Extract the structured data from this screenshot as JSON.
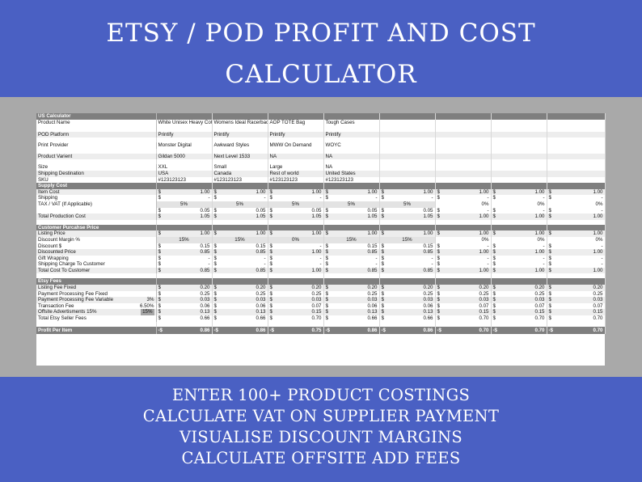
{
  "header": {
    "line1": "ETSY  / POD PROFIT AND COST",
    "line2": "CALCULATOR"
  },
  "sheet": {
    "title": "US Calculator",
    "products": [
      {
        "name": "White Unisex Heavy Cotton Tee",
        "platform": "Printify",
        "provider": "Monster Digital",
        "variant": "Gildan 5000",
        "size": "XXL",
        "destination": "USA",
        "sku": "#123123123"
      },
      {
        "name": "Womens Ideal Racerback Tank",
        "platform": "Printify",
        "provider": "Awkward Styles",
        "variant": "Next Level 1533",
        "size": "Small",
        "destination": "Canada",
        "sku": "#123123123"
      },
      {
        "name": "AOP TOTE Bag",
        "platform": "Printify",
        "provider": "MWW On Demand",
        "variant": "NA",
        "size": "Large",
        "destination": "Rest of world",
        "sku": "#123123123"
      },
      {
        "name": "Tough Cases",
        "platform": "Printify",
        "provider": "WOYC",
        "variant": "NA",
        "size": "NA",
        "destination": "United States",
        "sku": "#123123123"
      }
    ],
    "labels": {
      "product_name": "Product Name",
      "platform": "POD Platform",
      "provider": "Print Provider",
      "variant": "Product Varient",
      "size": "Size",
      "destination": "Shipping Destination",
      "sku": "SKU",
      "supply_cost": "Supply Cost",
      "item_cost": "Item Cost",
      "shipping": "Shipping",
      "tax": "TAX / VAT (If Applicable)",
      "total_production": "Total Production Cost",
      "customer_price": "Customer Purcahse Price",
      "listing_price": "Listing Price",
      "discount_margin": "Discount Margin %",
      "discount_amt": "Discount $",
      "discounted_price": "Discounted Price",
      "gift_wrapping": "Gift Wrapping",
      "shipping_charge": "Shipping Charge To Customer",
      "total_cost_customer": "Total Cost To Customer",
      "etsy_fees": "Etsy Fees",
      "listing_fee": "Listing Fee Fixed",
      "ppf_fixed": "Payment Processing Fee Fixed",
      "ppf_variable": "Payment Processing Fee Variable",
      "transaction_fee": "Transaction Fee",
      "offsite_ads": "Offsite Advertisments 15%",
      "total_etsy": "Total Etsy Seller Fees",
      "profit": "Profit Per Item"
    },
    "rates": {
      "ppf_variable": "3%",
      "transaction_fee": "6.50%",
      "offsite_ads": "15%"
    },
    "columns": {
      "item_cost": [
        "1.00",
        "1.00",
        "1.00",
        "1.00",
        "1.00",
        "1.00",
        "1.00",
        "1.00"
      ],
      "shipping": [
        "-",
        "-",
        "-",
        "-",
        "-",
        "-",
        "-",
        "-"
      ],
      "tax_pct": [
        "5%",
        "5%",
        "5%",
        "5%",
        "5%",
        "0%",
        "0%",
        "0%"
      ],
      "tax_amt": [
        "0.05",
        "0.05",
        "0.05",
        "0.05",
        "0.05",
        "-",
        "-",
        "-"
      ],
      "total_production": [
        "1.05",
        "1.05",
        "1.05",
        "1.05",
        "1.05",
        "1.00",
        "1.00",
        "1.00"
      ],
      "listing_price": [
        "1.00",
        "1.00",
        "1.00",
        "1.00",
        "1.00",
        "1.00",
        "1.00",
        "1.00"
      ],
      "discount_margin": [
        "15%",
        "15%",
        "0%",
        "15%",
        "15%",
        "0%",
        "0%",
        "0%"
      ],
      "discount_amt": [
        "0.15",
        "0.15",
        "-",
        "0.15",
        "0.15",
        "-",
        "-",
        "-"
      ],
      "discounted_price": [
        "0.85",
        "0.85",
        "1.00",
        "0.85",
        "0.85",
        "1.00",
        "1.00",
        "1.00"
      ],
      "gift_wrapping": [
        "-",
        "-",
        "-",
        "-",
        "-",
        "-",
        "-",
        "-"
      ],
      "shipping_charge": [
        "-",
        "-",
        "-",
        "-",
        "-",
        "-",
        "-",
        "-"
      ],
      "total_cost_customer": [
        "0.85",
        "0.85",
        "1.00",
        "0.85",
        "0.85",
        "1.00",
        "1.00",
        "1.00"
      ],
      "listing_fee": [
        "0.20",
        "0.20",
        "0.20",
        "0.20",
        "0.20",
        "0.20",
        "0.20",
        "0.20"
      ],
      "ppf_fixed": [
        "0.25",
        "0.25",
        "0.25",
        "0.25",
        "0.25",
        "0.25",
        "0.25",
        "0.25"
      ],
      "ppf_variable": [
        "0.03",
        "0.03",
        "0.03",
        "0.03",
        "0.03",
        "0.03",
        "0.03",
        "0.03"
      ],
      "transaction_fee": [
        "0.06",
        "0.06",
        "0.07",
        "0.06",
        "0.06",
        "0.07",
        "0.07",
        "0.07"
      ],
      "offsite_ads": [
        "0.13",
        "0.13",
        "0.15",
        "0.13",
        "0.13",
        "0.15",
        "0.15",
        "0.15"
      ],
      "total_etsy": [
        "0.66",
        "0.66",
        "0.70",
        "0.66",
        "0.66",
        "0.70",
        "0.70",
        "0.70"
      ],
      "profit": [
        "0.86",
        "0.86",
        "0.75",
        "0.86",
        "0.86",
        "0.70",
        "0.70",
        "0.70"
      ]
    },
    "currency": "$",
    "neg_currency": "-$"
  },
  "footer": {
    "lines": [
      "ENTER 100+ PRODUCT COSTINGS",
      "CALCULATE VAT ON SUPPLIER PAYMENT",
      "VISUALISE DISCOUNT MARGINS",
      "CALCULATE OFFSITE ADD FEES"
    ]
  }
}
